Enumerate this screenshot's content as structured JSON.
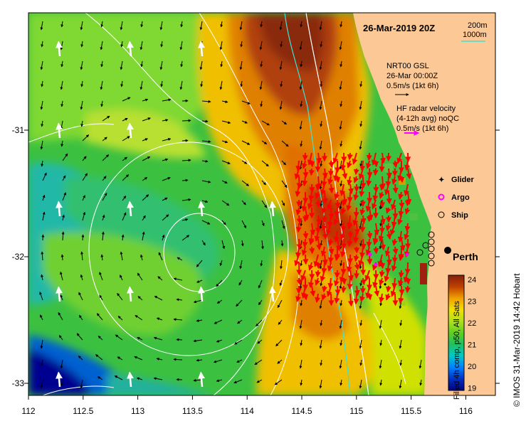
{
  "map": {
    "date_title": "26-Mar-2019 20Z",
    "bathymetry_legend": {
      "depth_1": "200m",
      "depth_2": "1000m",
      "color_2": "#40e0d0"
    },
    "model_legend": {
      "title": "NRT00 GSL",
      "date": "26-Mar 00:00Z",
      "scale": "0.5m/s (1kt 6h)",
      "color": "#000000"
    },
    "radar_legend": {
      "title": "HF radar velocity",
      "subtitle": "(4-12h avg) noQC",
      "scale": "0.5m/s (1kt 6h)",
      "color": "#ff00ff"
    },
    "platforms": [
      {
        "label": "Glider",
        "marker": "dot",
        "color": "#ff00ff"
      },
      {
        "label": "Argo",
        "marker": "circle",
        "color": "#ff00ff"
      },
      {
        "label": "Ship",
        "marker": "circle",
        "color": "#000000"
      }
    ],
    "city_label": "Perth",
    "axes": {
      "x_ticks": [
        "112",
        "112.5",
        "113",
        "113.5",
        "114",
        "114.5",
        "115",
        "115.5",
        "116"
      ],
      "y_ticks": [
        "-31",
        "-32",
        "-33"
      ]
    },
    "colorbar": {
      "title": "Filled 4h comp, p50, All Sats",
      "ticks": [
        "24",
        "23",
        "22",
        "21",
        "20",
        "19"
      ],
      "colors": [
        "#000080",
        "#0030c0",
        "#0080ff",
        "#00c8c8",
        "#20c060",
        "#60d020",
        "#b0e020",
        "#f0e000",
        "#f0a000",
        "#e06000",
        "#b03000",
        "#802010"
      ]
    },
    "credit": "© IMOS 31-Mar-2019 14:42 Hobart",
    "land_color": "#fbc896",
    "palette": {
      "deep_blue": "#000080",
      "cyan": "#00c0c0",
      "green": "#30c040",
      "light_green": "#90e020",
      "yellow": "#f0e000",
      "orange": "#f09000",
      "dark_orange": "#c05000",
      "brown": "#8a3010"
    }
  }
}
